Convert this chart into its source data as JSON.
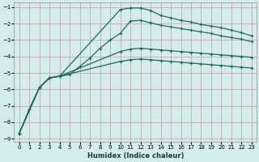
{
  "xlabel": "Humidex (Indice chaleur)",
  "bg_color": "#d4ecec",
  "grid_color": "#c8a8a8",
  "line_color": "#1a6b5a",
  "xlim": [
    -0.5,
    23.5
  ],
  "ylim": [
    -9.2,
    -0.7
  ],
  "xticks": [
    0,
    1,
    2,
    3,
    4,
    5,
    6,
    7,
    8,
    9,
    10,
    11,
    12,
    13,
    14,
    15,
    16,
    17,
    18,
    19,
    20,
    21,
    22,
    23
  ],
  "yticks": [
    -9,
    -8,
    -7,
    -6,
    -5,
    -4,
    -3,
    -2,
    -1
  ],
  "curve1_x": [
    0,
    1,
    2,
    3,
    4,
    10,
    11,
    12,
    13,
    14,
    15,
    16,
    17,
    18,
    19,
    20,
    21,
    22,
    23
  ],
  "curve1_y": [
    -8.7,
    -7.2,
    -5.9,
    -5.3,
    -5.2,
    -1.15,
    -1.05,
    -1.05,
    -1.2,
    -1.5,
    -1.65,
    -1.8,
    -1.9,
    -2.05,
    -2.15,
    -2.25,
    -2.4,
    -2.55,
    -2.75
  ],
  "curve2_x": [
    0,
    2,
    3,
    4,
    5,
    6,
    7,
    8,
    9,
    10,
    11,
    12,
    13,
    14,
    15,
    16,
    17,
    18,
    19,
    20,
    21,
    22,
    23
  ],
  "curve2_y": [
    -8.7,
    -5.9,
    -5.3,
    -5.2,
    -5.1,
    -4.6,
    -4.1,
    -3.5,
    -3.0,
    -2.6,
    -1.85,
    -1.8,
    -1.95,
    -2.1,
    -2.2,
    -2.3,
    -2.4,
    -2.5,
    -2.6,
    -2.75,
    -2.85,
    -2.95,
    -3.1
  ],
  "curve3_x": [
    0,
    2,
    3,
    4,
    10,
    11,
    12,
    13,
    14,
    15,
    16,
    17,
    18,
    19,
    20,
    21,
    22,
    23
  ],
  "curve3_y": [
    -8.7,
    -5.9,
    -5.3,
    -5.2,
    -3.7,
    -3.55,
    -3.5,
    -3.55,
    -3.6,
    -3.65,
    -3.7,
    -3.75,
    -3.8,
    -3.85,
    -3.9,
    -3.95,
    -4.0,
    -4.05
  ],
  "curve4_x": [
    0,
    2,
    3,
    4,
    10,
    11,
    12,
    13,
    14,
    15,
    16,
    17,
    18,
    19,
    20,
    21,
    22,
    23
  ],
  "curve4_y": [
    -8.7,
    -5.9,
    -5.3,
    -5.2,
    -4.3,
    -4.2,
    -4.15,
    -4.2,
    -4.25,
    -4.3,
    -4.35,
    -4.4,
    -4.45,
    -4.5,
    -4.55,
    -4.6,
    -4.65,
    -4.7
  ]
}
